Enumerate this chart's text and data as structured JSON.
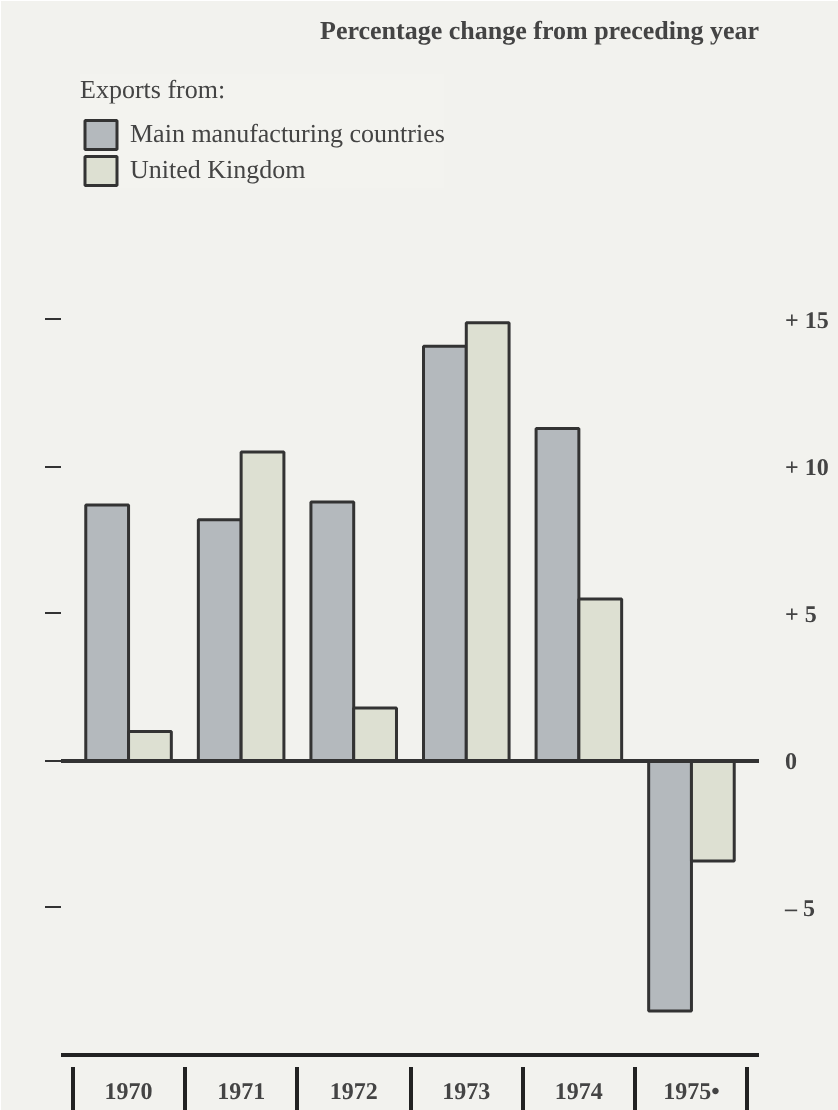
{
  "chart_data": {
    "type": "bar",
    "title": "Percentage change from preceding year",
    "legend_title": "Exports from:",
    "categories": [
      "1970",
      "1971",
      "1972",
      "1973",
      "1974",
      "1975•"
    ],
    "series": [
      {
        "name": "Main manufacturing countries",
        "color": "#b4b9bd",
        "values": [
          8.7,
          8.2,
          8.8,
          14.1,
          11.3,
          -8.5
        ]
      },
      {
        "name": "United Kingdom",
        "color": "#dde0d2",
        "values": [
          1.0,
          10.5,
          1.8,
          14.9,
          5.5,
          -3.4
        ]
      }
    ],
    "ylim": [
      -10,
      24
    ],
    "yticks": [
      {
        "value": 15,
        "label": "+ 15"
      },
      {
        "value": 10,
        "label": "+ 10"
      },
      {
        "value": 5,
        "label": "+ 5"
      },
      0,
      {
        "value": -5,
        "label": "– 5"
      }
    ],
    "ref_lines": [
      {
        "axis": "y",
        "value": 0,
        "color": "#333333",
        "line_style": "solid"
      }
    ],
    "legend": "top left",
    "grid": false
  }
}
